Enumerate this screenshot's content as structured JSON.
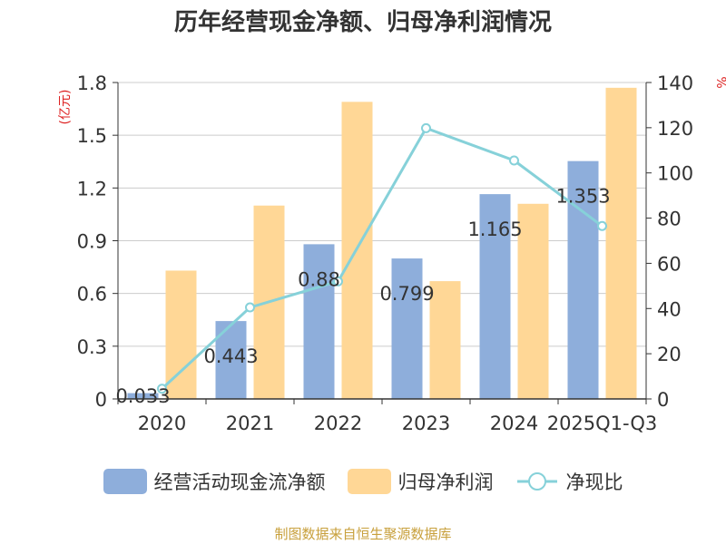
{
  "title": "历年经营现金净额、归母净利润情况",
  "source": "制图数据来自恒生聚源数据库",
  "colors": {
    "cash": "#8eaedb",
    "profit": "#ffd796",
    "ratio": "#86d1d9",
    "unit": "#dd2222",
    "axis": "#333333",
    "grid": "#cccccc"
  },
  "chart_data": {
    "type": "bar",
    "categories": [
      "2020",
      "2021",
      "2022",
      "2023",
      "2024",
      "2025Q1-Q3"
    ],
    "y_left": {
      "label": "(亿元)",
      "range": [
        0,
        1.8
      ],
      "ticks": [
        "0",
        "0.3",
        "0.6",
        "0.9",
        "1.2",
        "1.5",
        "1.8"
      ]
    },
    "y_right": {
      "label": "%",
      "range": [
        0,
        140
      ],
      "ticks": [
        "0",
        "20",
        "40",
        "60",
        "80",
        "100",
        "120",
        "140"
      ]
    },
    "series": [
      {
        "name": "经营活动现金流净额",
        "type": "bar",
        "axis": "left",
        "values": [
          0.033,
          0.443,
          0.88,
          0.799,
          1.165,
          1.353
        ],
        "labels": [
          "0.033",
          "0.443",
          "0.88",
          "0.799",
          "1.165",
          "1.353"
        ]
      },
      {
        "name": "归母净利润",
        "type": "bar",
        "axis": "left",
        "values": [
          0.73,
          1.1,
          1.69,
          0.67,
          1.11,
          1.77
        ]
      },
      {
        "name": "净现比",
        "type": "line",
        "axis": "right",
        "values": [
          4.5,
          40.5,
          52.0,
          119.8,
          105.5,
          76.5
        ]
      }
    ],
    "grid": true,
    "legend": "bottom"
  }
}
